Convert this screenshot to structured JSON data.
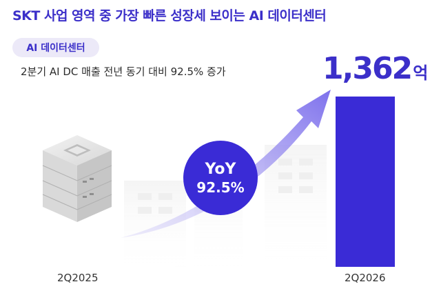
{
  "headline": "SKT 사업 영역 중 가장 빠른 성장세 보이는 AI 데이터센터",
  "tag": "AI 데이터센터",
  "subtitle": "2분기 AI DC 매출 전년 동기 대비 92.5% 증가",
  "amount": {
    "value": "1,362",
    "unit": "억"
  },
  "badge": {
    "line1": "YoY",
    "line2": "92.5%"
  },
  "periods": {
    "left": "2Q2025",
    "right": "2Q2026"
  },
  "colors": {
    "accent": "#3a2bd6",
    "tag_bg": "#ece9f8",
    "arrow": "#8b80ee"
  }
}
